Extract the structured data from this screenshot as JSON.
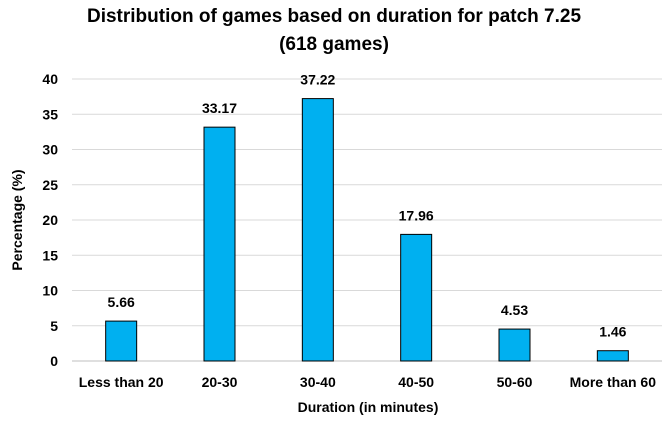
{
  "chart_data": {
    "type": "bar",
    "title_line1": "Distribution of games based on duration for patch 7.25",
    "title_line2": "(618 games)",
    "xlabel": "Duration (in minutes)",
    "ylabel": "Percentage (%)",
    "categories": [
      "Less than 20",
      "20-30",
      "30-40",
      "40-50",
      "50-60",
      "More than 60"
    ],
    "values": [
      5.66,
      33.17,
      37.22,
      17.96,
      4.53,
      1.46
    ],
    "value_labels": [
      "5.66",
      "33.17",
      "37.22",
      "17.96",
      "4.53",
      "1.46"
    ],
    "ylim": [
      0,
      40
    ],
    "yticks": [
      "0",
      "5",
      "10",
      "15",
      "20",
      "25",
      "30",
      "35",
      "40"
    ],
    "grid": true,
    "legend": "none",
    "colors": {
      "bar_fill": "#00B0F0",
      "bar_stroke": "#000000",
      "grid": "#D9D9D9"
    }
  }
}
